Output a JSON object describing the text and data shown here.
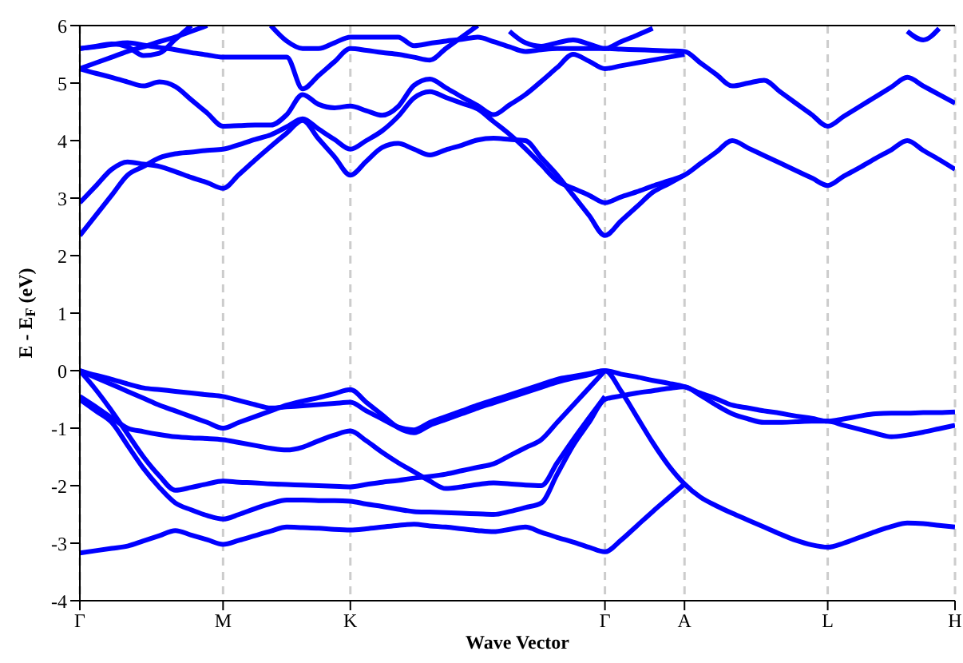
{
  "chart_data": {
    "type": "line",
    "xlabel": "Wave Vector",
    "ylabel": "E - E$_{F}$ (eV)",
    "ylim": [
      -4,
      6
    ],
    "yticks": [
      -4,
      -3,
      -2,
      -1,
      0,
      1,
      2,
      3,
      4,
      5,
      6
    ],
    "categories": [
      "Γ",
      null,
      null,
      null,
      null,
      null,
      null,
      null,
      null,
      "M",
      null,
      null,
      null,
      null,
      null,
      null,
      null,
      "K",
      null,
      null,
      null,
      null,
      null,
      null,
      null,
      null,
      null,
      null,
      null,
      null,
      null,
      null,
      null,
      "Γ",
      null,
      null,
      null,
      null,
      "A",
      null,
      null,
      null,
      null,
      null,
      null,
      null,
      null,
      "L",
      null,
      null,
      null,
      null,
      null,
      null,
      null,
      "H"
    ],
    "grid": "x",
    "legend": false,
    "marker": "none",
    "line_style": "solid",
    "series": [
      {
        "color": "#0000ff",
        "values": [
          -3.17,
          -3.13,
          -3.09,
          -3.05,
          -2.96,
          -2.87,
          -2.78,
          -2.86,
          -2.94,
          -3.02,
          -2.95,
          -2.87,
          -2.79,
          -2.72,
          -2.73,
          -2.74,
          -2.76,
          -2.77,
          -2.75,
          -2.72,
          -2.69,
          -2.67,
          -2.7,
          -2.72,
          -2.75,
          -2.78,
          -2.8,
          -2.76,
          -2.72,
          -2.81,
          -2.9,
          -2.98,
          -3.07,
          -3.15,
          -2.95,
          -2.7,
          -2.45,
          -2.21,
          -1.97,
          null,
          null,
          null,
          null,
          null,
          null,
          null,
          null,
          null,
          null,
          null,
          null,
          null,
          null,
          null,
          null,
          null
        ]
      },
      {
        "color": "#0000ff",
        "values": [
          -0.5,
          -0.7,
          -0.9,
          -1.3,
          -1.7,
          -2.03,
          -2.3,
          -2.42,
          -2.52,
          -2.58,
          -2.5,
          -2.4,
          -2.31,
          -2.25,
          -2.25,
          -2.26,
          -2.26,
          -2.27,
          -2.32,
          -2.36,
          -2.41,
          -2.45,
          -2.46,
          -2.47,
          -2.48,
          -2.49,
          -2.5,
          -2.45,
          -2.38,
          -2.3,
          -1.8,
          -1.3,
          -0.9,
          -0.5,
          -0.44,
          -0.39,
          -0.35,
          -0.31,
          -0.28,
          -0.43,
          -0.6,
          -0.75,
          -0.84,
          -0.9,
          -0.9,
          -0.89,
          -0.88,
          -0.88,
          -0.95,
          -1.02,
          -1.09,
          -1.15,
          -1.12,
          -1.07,
          -1.01,
          -0.95
        ]
      },
      {
        "color": "#0000ff",
        "values": [
          -0.45,
          -0.63,
          -0.82,
          -1.0,
          -1.06,
          -1.11,
          -1.15,
          -1.17,
          -1.18,
          -1.2,
          -1.25,
          -1.3,
          -1.35,
          -1.38,
          -1.33,
          -1.22,
          -1.12,
          -1.05,
          -1.22,
          -1.42,
          -1.6,
          -1.76,
          -1.92,
          -2.05,
          -2.02,
          -1.98,
          -1.95,
          -1.97,
          -1.99,
          -2.0,
          -1.6,
          -1.2,
          -0.82,
          -0.45,
          null,
          null,
          null,
          null,
          null,
          null,
          null,
          null,
          null,
          null,
          null,
          null,
          null,
          null,
          null,
          null,
          null,
          null,
          null,
          null,
          null,
          null
        ]
      },
      {
        "color": "#0000ff",
        "values": [
          0,
          -0.33,
          -0.7,
          -1.1,
          -1.5,
          -1.83,
          -2.08,
          -2.03,
          -1.97,
          -1.92,
          -1.94,
          -1.95,
          -1.97,
          -1.98,
          -1.99,
          -2.0,
          -2.01,
          -2.02,
          -1.98,
          -1.94,
          -1.91,
          -1.87,
          -1.84,
          -1.8,
          -1.74,
          -1.68,
          -1.62,
          -1.48,
          -1.34,
          -1.2,
          -0.9,
          -0.6,
          -0.3,
          0,
          null,
          null,
          null,
          null,
          null,
          null,
          null,
          null,
          null,
          null,
          null,
          null,
          null,
          null,
          null,
          null,
          null,
          null,
          null,
          null,
          null,
          null
        ]
      },
      {
        "color": "#0000ff",
        "values": [
          0,
          -0.08,
          -0.15,
          -0.23,
          -0.3,
          -0.33,
          -0.36,
          -0.39,
          -0.42,
          -0.45,
          -0.52,
          -0.59,
          -0.65,
          -0.63,
          -0.61,
          -0.59,
          -0.57,
          -0.55,
          -0.7,
          -0.84,
          -0.98,
          -1.03,
          -0.9,
          -0.8,
          -0.7,
          -0.6,
          -0.51,
          -0.42,
          -0.33,
          -0.24,
          -0.15,
          -0.1,
          -0.05,
          0,
          -0.06,
          -0.11,
          -0.17,
          -0.22,
          -0.28,
          -0.39,
          -0.49,
          -0.6,
          -0.65,
          -0.7,
          -0.74,
          -0.79,
          -0.83,
          -0.88,
          -0.84,
          -0.79,
          -0.75,
          -0.74,
          -0.74,
          -0.73,
          -0.73,
          -0.72
        ]
      },
      {
        "color": "#0000ff",
        "values": [
          0,
          -0.12,
          -0.24,
          -0.36,
          -0.48,
          -0.6,
          -0.7,
          -0.8,
          -0.9,
          -1.0,
          -0.9,
          -0.8,
          -0.7,
          -0.6,
          -0.53,
          -0.47,
          -0.4,
          -0.33,
          -0.55,
          -0.77,
          -0.99,
          -1.08,
          -0.95,
          -0.85,
          -0.75,
          -0.65,
          -0.56,
          -0.47,
          -0.38,
          -0.29,
          -0.2,
          -0.13,
          -0.07,
          0,
          -0.35,
          -0.8,
          -1.25,
          -1.65,
          -1.97,
          -2.2,
          -2.35,
          -2.48,
          -2.6,
          -2.72,
          -2.84,
          -2.95,
          -3.03,
          -3.07,
          -3.0,
          -2.9,
          -2.8,
          -2.71,
          -2.65,
          -2.66,
          -2.69,
          -2.72
        ]
      },
      {
        "color": "#0000ff",
        "values": [
          2.35,
          2.7,
          3.05,
          3.4,
          3.55,
          3.7,
          3.77,
          3.8,
          3.83,
          3.85,
          3.93,
          4.02,
          4.1,
          4.24,
          4.38,
          4.2,
          4.02,
          3.85,
          4.0,
          4.17,
          4.42,
          4.74,
          4.85,
          4.75,
          4.65,
          4.55,
          4.33,
          4.11,
          3.86,
          3.58,
          3.3,
          3.17,
          3.05,
          2.92,
          3.02,
          3.11,
          3.21,
          3.3,
          3.4,
          3.6,
          3.8,
          4.0,
          3.87,
          3.74,
          3.61,
          3.48,
          3.35,
          3.22,
          3.38,
          3.53,
          3.69,
          3.84,
          4.0,
          3.83,
          3.67,
          3.5
        ]
      },
      {
        "color": "#0000ff",
        "values": [
          2.92,
          3.21,
          3.5,
          3.63,
          3.59,
          3.55,
          3.46,
          3.36,
          3.27,
          3.17,
          3.41,
          3.66,
          3.9,
          4.13,
          4.35,
          4.03,
          3.72,
          3.4,
          3.64,
          3.88,
          3.95,
          3.85,
          3.75,
          3.84,
          3.92,
          4.01,
          4.04,
          4.02,
          4.0,
          3.7,
          3.4,
          3.05,
          2.7,
          2.35,
          2.6,
          2.85,
          3.1,
          3.25,
          3.4,
          null,
          null,
          null,
          null,
          null,
          null,
          null,
          null,
          null,
          null,
          null,
          null,
          null,
          null,
          null,
          null,
          null
        ]
      },
      {
        "color": "#0000ff",
        "values": [
          5.25,
          5.17,
          5.1,
          5.02,
          4.95,
          5.02,
          4.94,
          4.71,
          4.48,
          4.25,
          4.26,
          4.27,
          4.27,
          4.45,
          4.8,
          4.63,
          4.57,
          4.6,
          4.52,
          4.44,
          4.59,
          4.96,
          5.07,
          4.92,
          4.76,
          4.61,
          4.45,
          4.62,
          4.8,
          5.03,
          5.27,
          5.5,
          5.38,
          5.25,
          5.3,
          5.35,
          5.4,
          5.45,
          5.5,
          null,
          null,
          null,
          null,
          null,
          null,
          null,
          null,
          null,
          null,
          null,
          null,
          null,
          null,
          null,
          null,
          null
        ]
      },
      {
        "color": "#0000ff",
        "values": [
          5.25,
          5.35,
          5.45,
          5.55,
          5.63,
          5.72,
          5.8,
          5.9,
          6,
          null,
          null,
          null,
          null,
          null,
          null,
          null,
          null,
          null,
          null,
          null,
          null,
          null,
          null,
          null,
          null,
          null,
          null,
          null,
          null,
          null,
          null,
          null,
          null,
          null,
          null,
          null,
          null,
          null,
          null,
          null,
          null,
          null,
          null,
          null,
          null,
          null,
          null,
          null,
          null,
          null,
          null,
          null,
          null,
          null,
          null,
          null
        ]
      },
      {
        "color": "#0000ff",
        "values": [
          5.6,
          5.64,
          5.68,
          5.63,
          5.48,
          5.52,
          5.76,
          6,
          null,
          null,
          null,
          null,
          null,
          null,
          null,
          null,
          null,
          null,
          null,
          null,
          null,
          null,
          null,
          null,
          null,
          null,
          null,
          null,
          null,
          null,
          null,
          null,
          null,
          null,
          null,
          null,
          null,
          null,
          null,
          null,
          null,
          null,
          null,
          null,
          null,
          null,
          null,
          null,
          null,
          null,
          null,
          null,
          null,
          null,
          null,
          null
        ]
      },
      {
        "color": "#0000ff",
        "values": [
          5.6,
          5.63,
          5.67,
          5.7,
          5.66,
          5.62,
          5.58,
          5.53,
          5.49,
          5.45,
          5.45,
          5.45,
          5.45,
          5.45,
          4.9,
          5.13,
          5.37,
          5.6,
          5.57,
          5.53,
          5.5,
          5.45,
          5.4,
          5.6,
          5.8,
          6,
          null,
          null,
          null,
          null,
          null,
          null,
          null,
          null,
          null,
          null,
          null,
          null,
          null,
          null,
          null,
          null,
          null,
          null,
          null,
          null,
          null,
          null,
          null,
          null,
          null,
          null,
          null,
          null,
          null,
          null
        ]
      },
      {
        "color": "#0000ff",
        "values": [
          null,
          null,
          null,
          null,
          null,
          null,
          null,
          null,
          null,
          null,
          null,
          null,
          6,
          5.73,
          5.6,
          5.6,
          5.7,
          5.8,
          5.8,
          5.8,
          5.8,
          5.65,
          5.69,
          5.73,
          5.76,
          5.8,
          5.72,
          5.63,
          5.55,
          5.58,
          5.6,
          5.6,
          5.6,
          5.6,
          5.59,
          5.58,
          5.57,
          5.56,
          5.55,
          5.35,
          5.15,
          4.95,
          5.0,
          5.05,
          4.85,
          4.65,
          4.45,
          4.25,
          4.42,
          4.59,
          4.76,
          4.93,
          5.1,
          4.95,
          4.8,
          4.65
        ]
      },
      {
        "color": "#0000ff",
        "values": [
          null,
          null,
          null,
          null,
          null,
          null,
          null,
          null,
          null,
          null,
          null,
          null,
          null,
          null,
          null,
          null,
          null,
          null,
          null,
          null,
          null,
          null,
          null,
          null,
          null,
          null,
          null,
          5.9,
          5.7,
          5.64,
          5.7,
          5.75,
          5.68,
          5.6,
          5.72,
          5.83,
          5.95,
          null,
          null,
          null,
          null,
          null,
          null,
          null,
          null,
          null,
          null,
          null,
          null,
          null,
          null,
          null,
          null,
          null,
          null,
          null
        ]
      },
      {
        "color": "#0000ff",
        "values": [
          null,
          null,
          null,
          null,
          null,
          null,
          null,
          null,
          null,
          null,
          null,
          null,
          null,
          null,
          null,
          null,
          null,
          null,
          null,
          null,
          null,
          null,
          null,
          null,
          null,
          null,
          null,
          null,
          null,
          null,
          null,
          null,
          null,
          null,
          null,
          null,
          null,
          null,
          null,
          null,
          null,
          null,
          null,
          null,
          null,
          null,
          null,
          null,
          null,
          null,
          null,
          null,
          5.9,
          5.75,
          5.95,
          null
        ]
      }
    ]
  }
}
